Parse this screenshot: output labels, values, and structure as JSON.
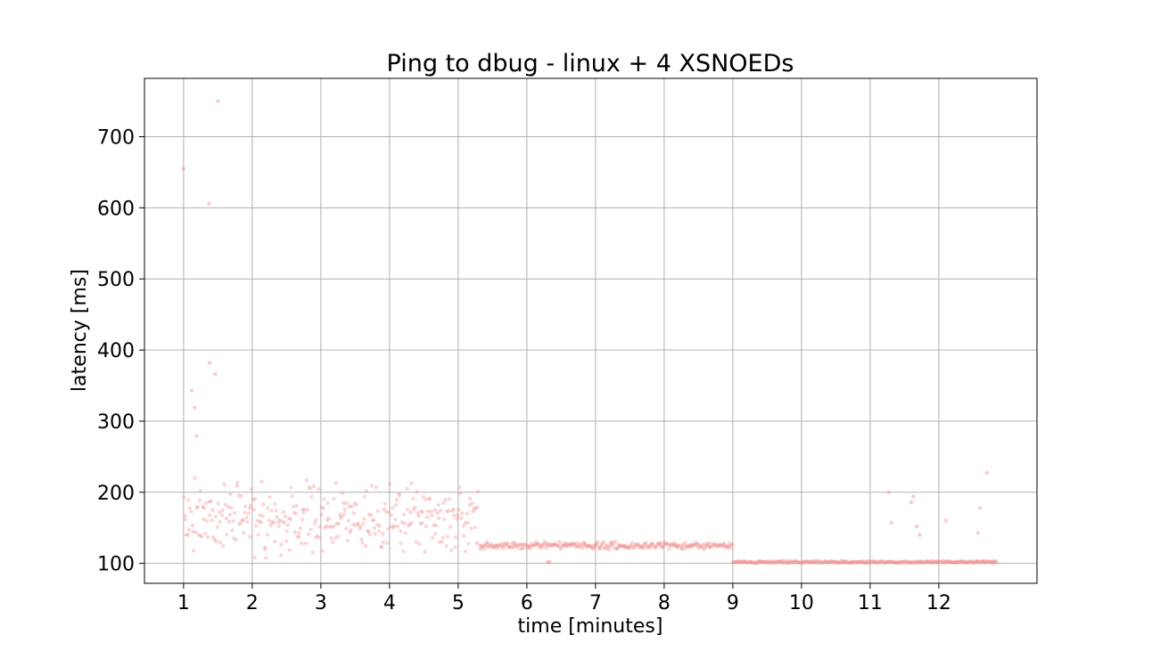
{
  "chart_data": {
    "type": "scatter",
    "title": "Ping to dbug - linux + 4 XSNOEDs",
    "xlabel": "time [minutes]",
    "ylabel": "latency [ms]",
    "xlim": [
      0.43,
      13.43
    ],
    "ylim": [
      72,
      782
    ],
    "xticks": [
      1,
      2,
      3,
      4,
      5,
      6,
      7,
      8,
      9,
      10,
      11,
      12
    ],
    "yticks": [
      100,
      200,
      300,
      400,
      500,
      600,
      700
    ],
    "grid": true,
    "point_color": "#f28b8b",
    "segments": [
      {
        "x_start": 1.0,
        "x_end": 5.3,
        "latency_min": 103,
        "latency_max": 222,
        "count": 330
      },
      {
        "x_start": 5.3,
        "x_end": 9.0,
        "latency_min": 119,
        "latency_max": 131,
        "count": 300
      },
      {
        "x_start": 9.0,
        "x_end": 12.85,
        "latency_min": 100,
        "latency_max": 104,
        "count": 310
      }
    ],
    "outliers": [
      {
        "x": 1.0,
        "y": 655
      },
      {
        "x": 1.5,
        "y": 750
      },
      {
        "x": 1.37,
        "y": 606
      },
      {
        "x": 1.38,
        "y": 382
      },
      {
        "x": 1.46,
        "y": 366
      },
      {
        "x": 1.12,
        "y": 343
      },
      {
        "x": 1.16,
        "y": 319
      },
      {
        "x": 1.19,
        "y": 279
      },
      {
        "x": 6.3,
        "y": 102
      },
      {
        "x": 6.33,
        "y": 102
      },
      {
        "x": 11.27,
        "y": 200
      },
      {
        "x": 11.31,
        "y": 157
      },
      {
        "x": 11.6,
        "y": 186
      },
      {
        "x": 11.63,
        "y": 194
      },
      {
        "x": 11.68,
        "y": 152
      },
      {
        "x": 11.72,
        "y": 140
      },
      {
        "x": 12.1,
        "y": 160
      },
      {
        "x": 12.6,
        "y": 178
      },
      {
        "x": 12.57,
        "y": 143
      },
      {
        "x": 12.7,
        "y": 227
      }
    ]
  }
}
